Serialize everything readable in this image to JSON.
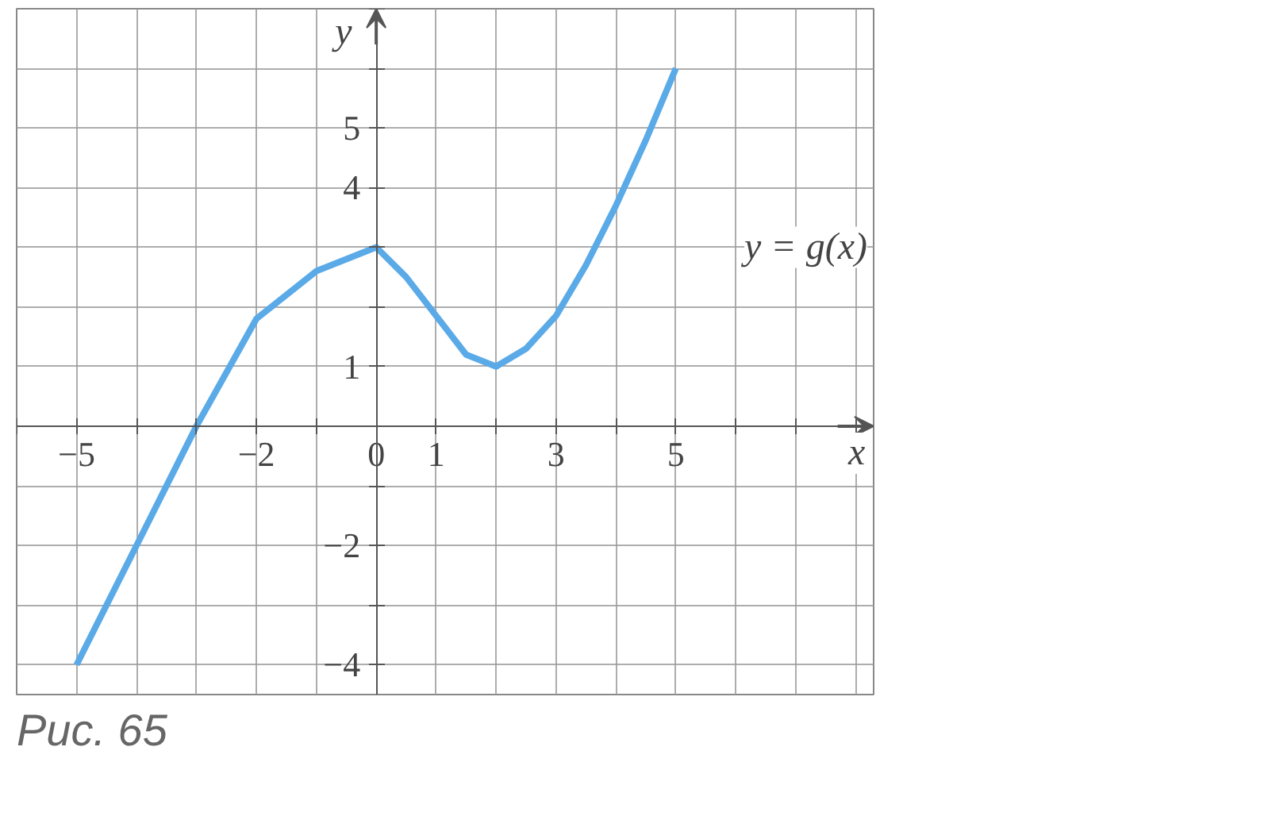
{
  "chart_data": {
    "type": "line",
    "xlabel": "x",
    "ylabel": "y",
    "annotations": [
      "Рис. 65"
    ],
    "x": [
      -5,
      -4,
      -3,
      -2,
      -1,
      0,
      0.5,
      1,
      1.5,
      2,
      2.5,
      3,
      3.5,
      4,
      4.5,
      5
    ],
    "series": [
      {
        "name": "y = g(x)",
        "color": "#5aaae8",
        "values": [
          -4,
          -2,
          0,
          1.8,
          2.6,
          3,
          2.5,
          1.85,
          1.2,
          1,
          1.3,
          1.85,
          2.7,
          3.7,
          4.8,
          6
        ]
      }
    ],
    "xlim": [
      -6,
      8.3
    ],
    "ylim": [
      -4.5,
      7
    ],
    "xticks": [
      {
        "value": -6,
        "label": null
      },
      {
        "value": -5,
        "label": "−5"
      },
      {
        "value": -4,
        "label": null
      },
      {
        "value": -3,
        "label": null
      },
      {
        "value": -2,
        "label": "−2"
      },
      {
        "value": -1,
        "label": null
      },
      0,
      1,
      {
        "value": 2,
        "label": null
      },
      3,
      {
        "value": 4,
        "label": null
      },
      5,
      {
        "value": 6,
        "label": null
      },
      {
        "value": 7,
        "label": null
      },
      {
        "value": 8,
        "label": null
      }
    ],
    "yticks": [
      {
        "value": -4,
        "label": "−4"
      },
      {
        "value": -3,
        "label": null
      },
      {
        "value": -2,
        "label": "−2"
      },
      {
        "value": -1,
        "label": null
      },
      1,
      {
        "value": 2,
        "label": null
      },
      {
        "value": 3,
        "label": null
      },
      4,
      5,
      {
        "value": 6,
        "label": null
      },
      {
        "value": 7,
        "label": null
      }
    ],
    "grid": true,
    "marker": "none",
    "line_style": "solid",
    "legend": false
  }
}
